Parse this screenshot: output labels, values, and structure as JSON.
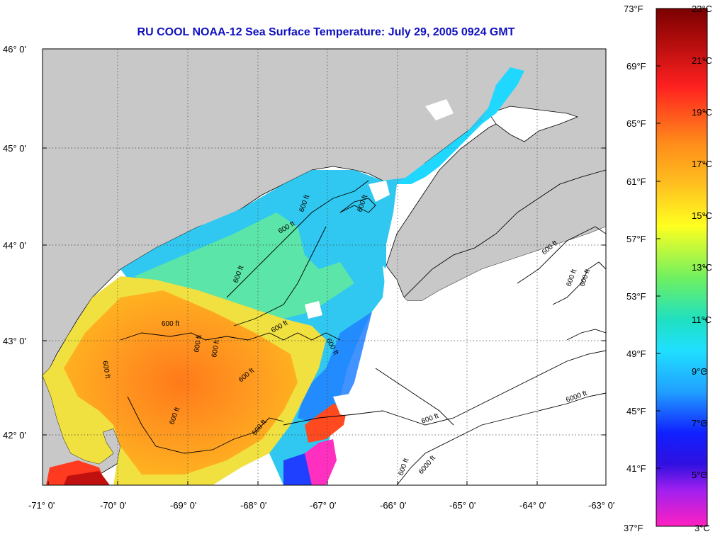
{
  "title": "RU COOL  NOAA-12  Sea Surface Temperature:  July 29, 2005 0924 GMT",
  "colors": {
    "land": "#c8c8c8",
    "nodata": "#ffffff",
    "title": "#1010c0"
  },
  "axes": {
    "lat_labels": [
      "46° 0'",
      "45° 0'",
      "44° 0'",
      "43° 0'",
      "42° 0'"
    ],
    "lon_labels": [
      "-71° 0'",
      "-70° 0'",
      "-69° 0'",
      "-68° 0'",
      "-67° 0'",
      "-66° 0'",
      "-65° 0'",
      "-64° 0'",
      "-63° 0'"
    ]
  },
  "colorbar": {
    "fahrenheit": [
      "73°F",
      "69°F",
      "65°F",
      "61°F",
      "57°F",
      "53°F",
      "49°F",
      "45°F",
      "41°F",
      "37°F"
    ],
    "celsius": [
      "23°C",
      "21°C",
      "19°C",
      "17°C",
      "15°C",
      "13°C",
      "11°C",
      "9°C",
      "7°C",
      "5°C",
      "3°C"
    ]
  },
  "contours": {
    "labels": [
      "600 ft",
      "600 ft",
      "600 ft",
      "600 ft",
      "600 ft",
      "600 ft",
      "600 ft",
      "600 ft",
      "600 ft",
      "600 ft",
      "600 ft",
      "600 ft",
      "600 ft",
      "600 ft",
      "600 ft",
      "600 ft",
      "600 ft",
      "600 ft",
      "6000 ft",
      "6000 ft"
    ]
  }
}
